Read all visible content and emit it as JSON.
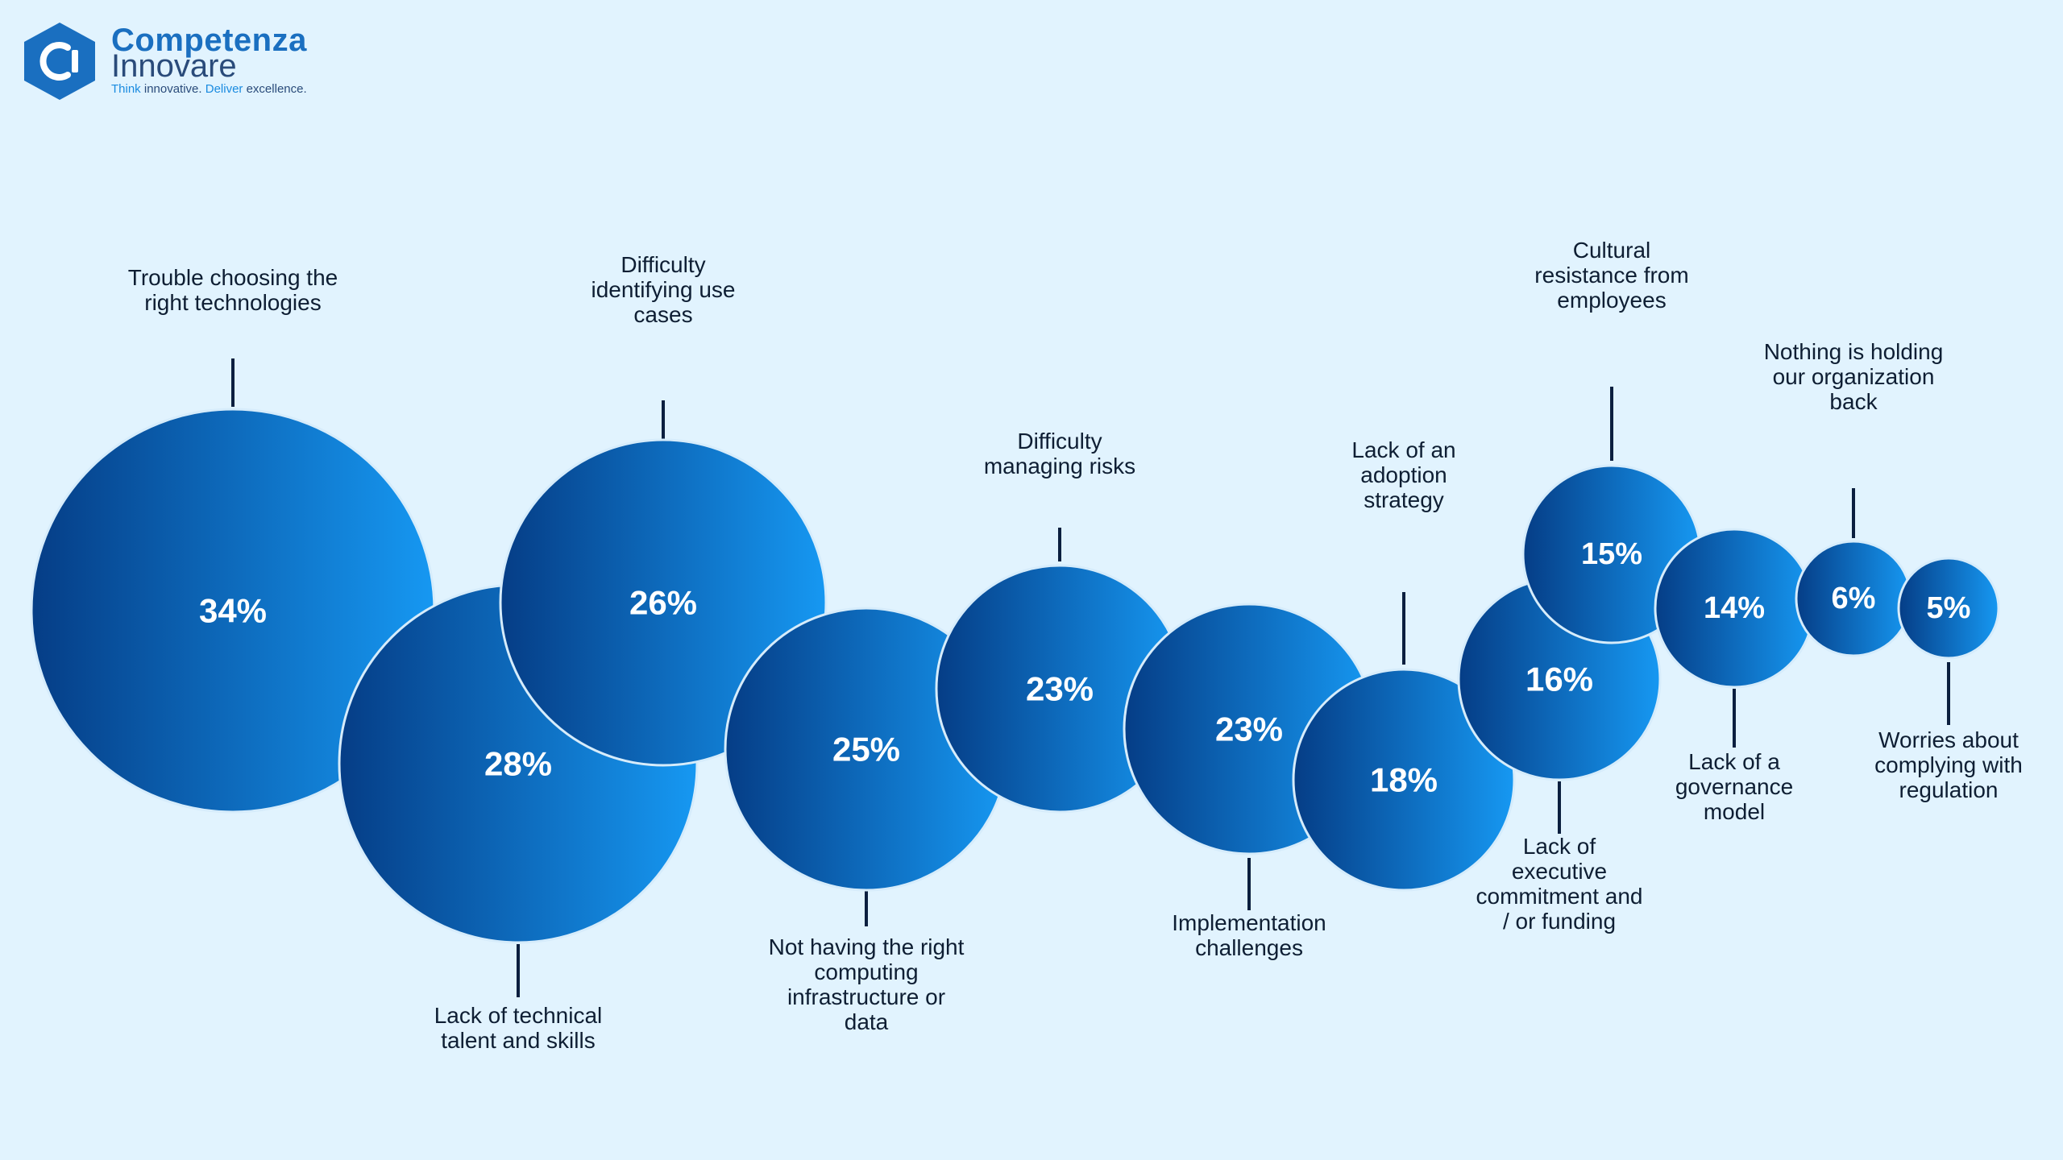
{
  "brand": {
    "name_line1": "Competenza",
    "name_line2": "Innovare",
    "tagline_think": "Think",
    "tagline_innovative": " innovative. ",
    "tagline_deliver": "Deliver",
    "tagline_excellence": " excellence.",
    "colors": {
      "primary": "#1a6fc0",
      "dark": "#2a4b7a",
      "accent": "#1a8be0"
    }
  },
  "chart_data": {
    "type": "bubble",
    "title": "",
    "unit": "%",
    "colors": {
      "gradient_start": "#053d86",
      "gradient_end": "#1698f2",
      "connector": "#0b1f3f",
      "background": "#e1f3fe"
    },
    "items": [
      {
        "label": "Trouble choosing the right technologies",
        "value": 34,
        "value_label": "34%",
        "label_position": "top"
      },
      {
        "label": "Lack of technical talent and skills",
        "value": 28,
        "value_label": "28%",
        "label_position": "bottom"
      },
      {
        "label": "Difficulty identifying use cases",
        "value": 26,
        "value_label": "26%",
        "label_position": "top"
      },
      {
        "label": "Not having the right computing infrastructure or data",
        "value": 25,
        "value_label": "25%",
        "label_position": "bottom"
      },
      {
        "label": "Difficulty managing risks",
        "value": 23,
        "value_label": "23%",
        "label_position": "top"
      },
      {
        "label": "Implementation challenges",
        "value": 23,
        "value_label": "23%",
        "label_position": "bottom"
      },
      {
        "label": "Lack of an adoption strategy",
        "value": 18,
        "value_label": "18%",
        "label_position": "top"
      },
      {
        "label": "Lack of executive commitment and / or funding",
        "value": 16,
        "value_label": "16%",
        "label_position": "bottom"
      },
      {
        "label": "Cultural resistance from employees",
        "value": 15,
        "value_label": "15%",
        "label_position": "top"
      },
      {
        "label": "Lack of a governance model",
        "value": 14,
        "value_label": "14%",
        "label_position": "bottom"
      },
      {
        "label": "Nothing is holding our organization back",
        "value": 6,
        "value_label": "6%",
        "label_position": "top"
      },
      {
        "label": "Worries about complying with regulation",
        "value": 5,
        "value_label": "5%",
        "label_position": "bottom"
      }
    ]
  }
}
